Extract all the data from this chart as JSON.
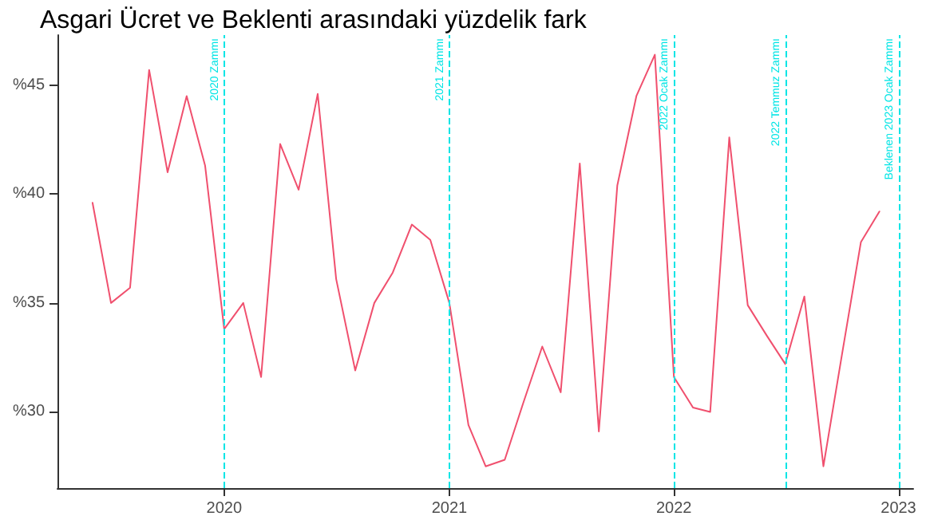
{
  "chart_data": {
    "type": "line",
    "title": "Asgari Ücret ve Beklenti arasındaki yüzdelik fark",
    "x": [
      "2019-06",
      "2019-07",
      "2019-08",
      "2019-09",
      "2019-10",
      "2019-11",
      "2019-12",
      "2020-01",
      "2020-02",
      "2020-03",
      "2020-04",
      "2020-05",
      "2020-06",
      "2020-07",
      "2020-08",
      "2020-09",
      "2020-10",
      "2020-11",
      "2020-12",
      "2021-01",
      "2021-02",
      "2021-03",
      "2021-04",
      "2021-05",
      "2021-06",
      "2021-07",
      "2021-08",
      "2021-09",
      "2021-10",
      "2021-11",
      "2021-12",
      "2022-01",
      "2022-02",
      "2022-03",
      "2022-04",
      "2022-05",
      "2022-06",
      "2022-07",
      "2022-08",
      "2022-09",
      "2022-10",
      "2022-11",
      "2022-12"
    ],
    "series": [
      {
        "color": "#f0506e",
        "values": [
          39.6,
          35.0,
          35.7,
          45.7,
          41.0,
          44.5,
          41.3,
          33.8,
          35.0,
          31.6,
          42.3,
          40.2,
          44.6,
          36.1,
          31.9,
          35.0,
          36.4,
          38.6,
          37.9,
          35.0,
          29.4,
          27.5,
          27.8,
          30.4,
          33.0,
          30.9,
          41.4,
          29.1,
          40.4,
          44.5,
          46.4,
          31.6,
          30.2,
          30.0,
          42.6,
          34.9,
          33.5,
          32.2,
          35.3,
          27.5,
          32.6,
          37.8,
          39.2
        ]
      }
    ],
    "xlim": [
      "2019-04-05",
      "2023-01-25"
    ],
    "xticks": [
      "2020",
      "2021",
      "2022",
      "2023"
    ],
    "ylim": [
      26.5,
      47.3
    ],
    "yticks": [
      {
        "value": 30,
        "label": "%30"
      },
      {
        "value": 35,
        "label": "%35"
      },
      {
        "value": 40,
        "label": "%40"
      },
      {
        "value": 45,
        "label": "%45"
      }
    ],
    "ref_lines": [
      {
        "axis": "x",
        "value": "2020-01",
        "label": "2020 Zammı",
        "color": "#00e5e5",
        "line_style": "dashed"
      },
      {
        "axis": "x",
        "value": "2021-01",
        "label": "2021 Zammı",
        "color": "#00e5e5",
        "line_style": "dashed"
      },
      {
        "axis": "x",
        "value": "2022-01",
        "label": "2022 Ocak Zammı",
        "color": "#00e5e5",
        "line_style": "dashed"
      },
      {
        "axis": "x",
        "value": "2022-07",
        "label": "2022 Temmuz Zammı",
        "color": "#00e5e5",
        "line_style": "dashed"
      },
      {
        "axis": "x",
        "value": "2023-01",
        "label": "Beklenen 2023 Ocak Zammı",
        "color": "#00e5e5",
        "line_style": "dashed"
      }
    ],
    "grid": false,
    "marker": "none",
    "line_style": "solid"
  }
}
